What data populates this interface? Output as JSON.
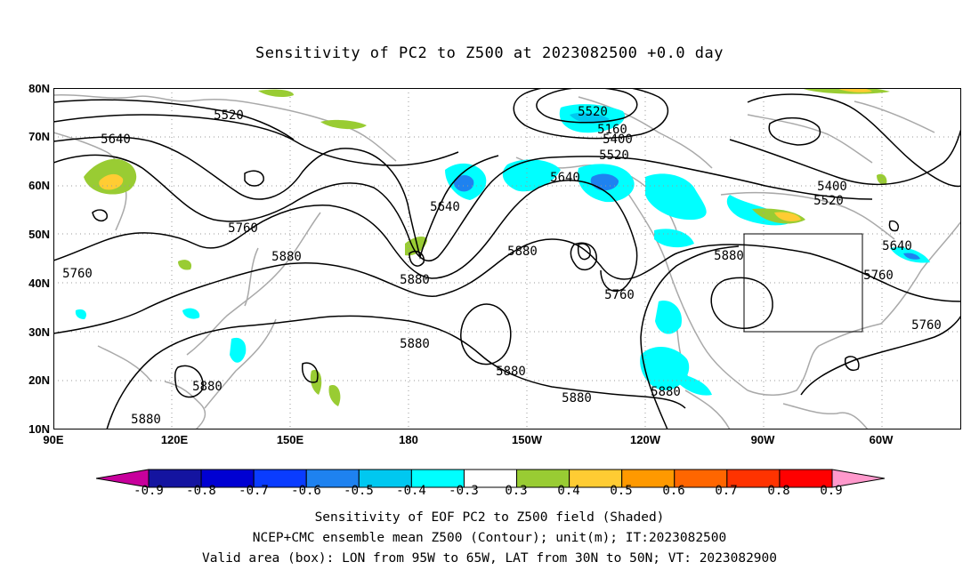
{
  "title": "Sensitivity of PC2 to Z500 at 2023082500 +0.0 day",
  "lat_labels": [
    "80N",
    "70N",
    "60N",
    "50N",
    "40N",
    "30N",
    "20N",
    "10N"
  ],
  "lon_labels": [
    "90E",
    "120E",
    "150E",
    "180",
    "150W",
    "120W",
    "90W",
    "60W"
  ],
  "contour_labels": [
    "5160",
    "5400",
    "5520",
    "5640",
    "5760",
    "5880"
  ],
  "contour_label_instances": [
    "5520",
    "5640",
    "5760",
    "5760",
    "5880",
    "5880",
    "5640",
    "5520",
    "5160",
    "5400",
    "5520",
    "5640",
    "5760",
    "5880",
    "5760",
    "5880",
    "5400",
    "5520",
    "5640",
    "5760",
    "5880",
    "5880",
    "5880",
    "5880",
    "5880",
    "5880"
  ],
  "validation_box": {
    "lon_from": "95W",
    "lon_to": "65W",
    "lat_from": "30N",
    "lat_to": "50N"
  },
  "colorbar": {
    "labels": [
      "-0.9",
      "-0.8",
      "-0.7",
      "-0.6",
      "-0.5",
      "-0.4",
      "-0.3",
      "0.3",
      "0.4",
      "0.5",
      "0.6",
      "0.7",
      "0.8",
      "0.9"
    ],
    "colors": [
      "#c8009c",
      "#1414a0",
      "#0000d2",
      "#0a3cff",
      "#1e82f0",
      "#00c8f0",
      "#00ffff",
      "#ffffff",
      "#99cc33",
      "#ffcc33",
      "#ff9900",
      "#ff6600",
      "#ff3300",
      "#ff0000",
      "#ff99cc"
    ]
  },
  "caption": {
    "line1": "Sensitivity of EOF PC2 to Z500 field (Shaded)",
    "line2": "NCEP+CMC ensemble mean Z500 (Contour); unit(m); IT:2023082500",
    "line3": "Valid area (box): LON from 95W to 65W, LAT from 30N to 50N; VT: 2023082900"
  }
}
